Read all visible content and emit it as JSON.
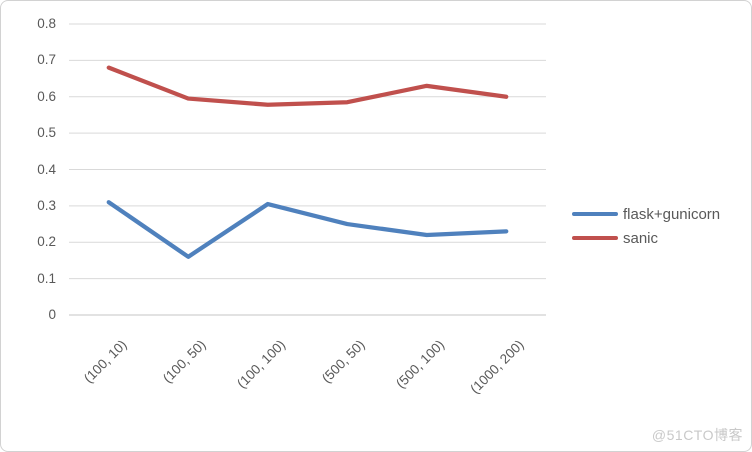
{
  "watermark": {
    "text": "@51CTO博客",
    "color": "#c9c9c9"
  },
  "colors": {
    "gridline": "#d9d9d9",
    "zero_line": "#c6c6c6",
    "axis_text": "#595959",
    "frame_border": "#d2d2d2",
    "series_blue": "#4F81BD",
    "series_red": "#C0504D"
  },
  "chart_data": {
    "type": "line",
    "title": "",
    "xlabel": "",
    "ylabel": "",
    "categories": [
      "（100，10）",
      "（100，50）",
      "（100，100）",
      "（500，50）",
      "（500，100）",
      "（1000，200）"
    ],
    "series": [
      {
        "name": "flask+gunicorn",
        "color": "#4F81BD",
        "values": [
          0.31,
          0.16,
          0.305,
          0.25,
          0.22,
          0.23
        ]
      },
      {
        "name": "sanic",
        "color": "#C0504D",
        "values": [
          0.68,
          0.595,
          0.578,
          0.585,
          0.63,
          0.6
        ]
      }
    ],
    "ylim": [
      0,
      0.8
    ],
    "y_ticks": [
      "0",
      "0.1",
      "0.2",
      "0.3",
      "0.4",
      "0.5",
      "0.6",
      "0.7",
      "0.8"
    ],
    "grid": "horizontal",
    "legend_position": "right",
    "x_label_rotation_deg": 45
  }
}
